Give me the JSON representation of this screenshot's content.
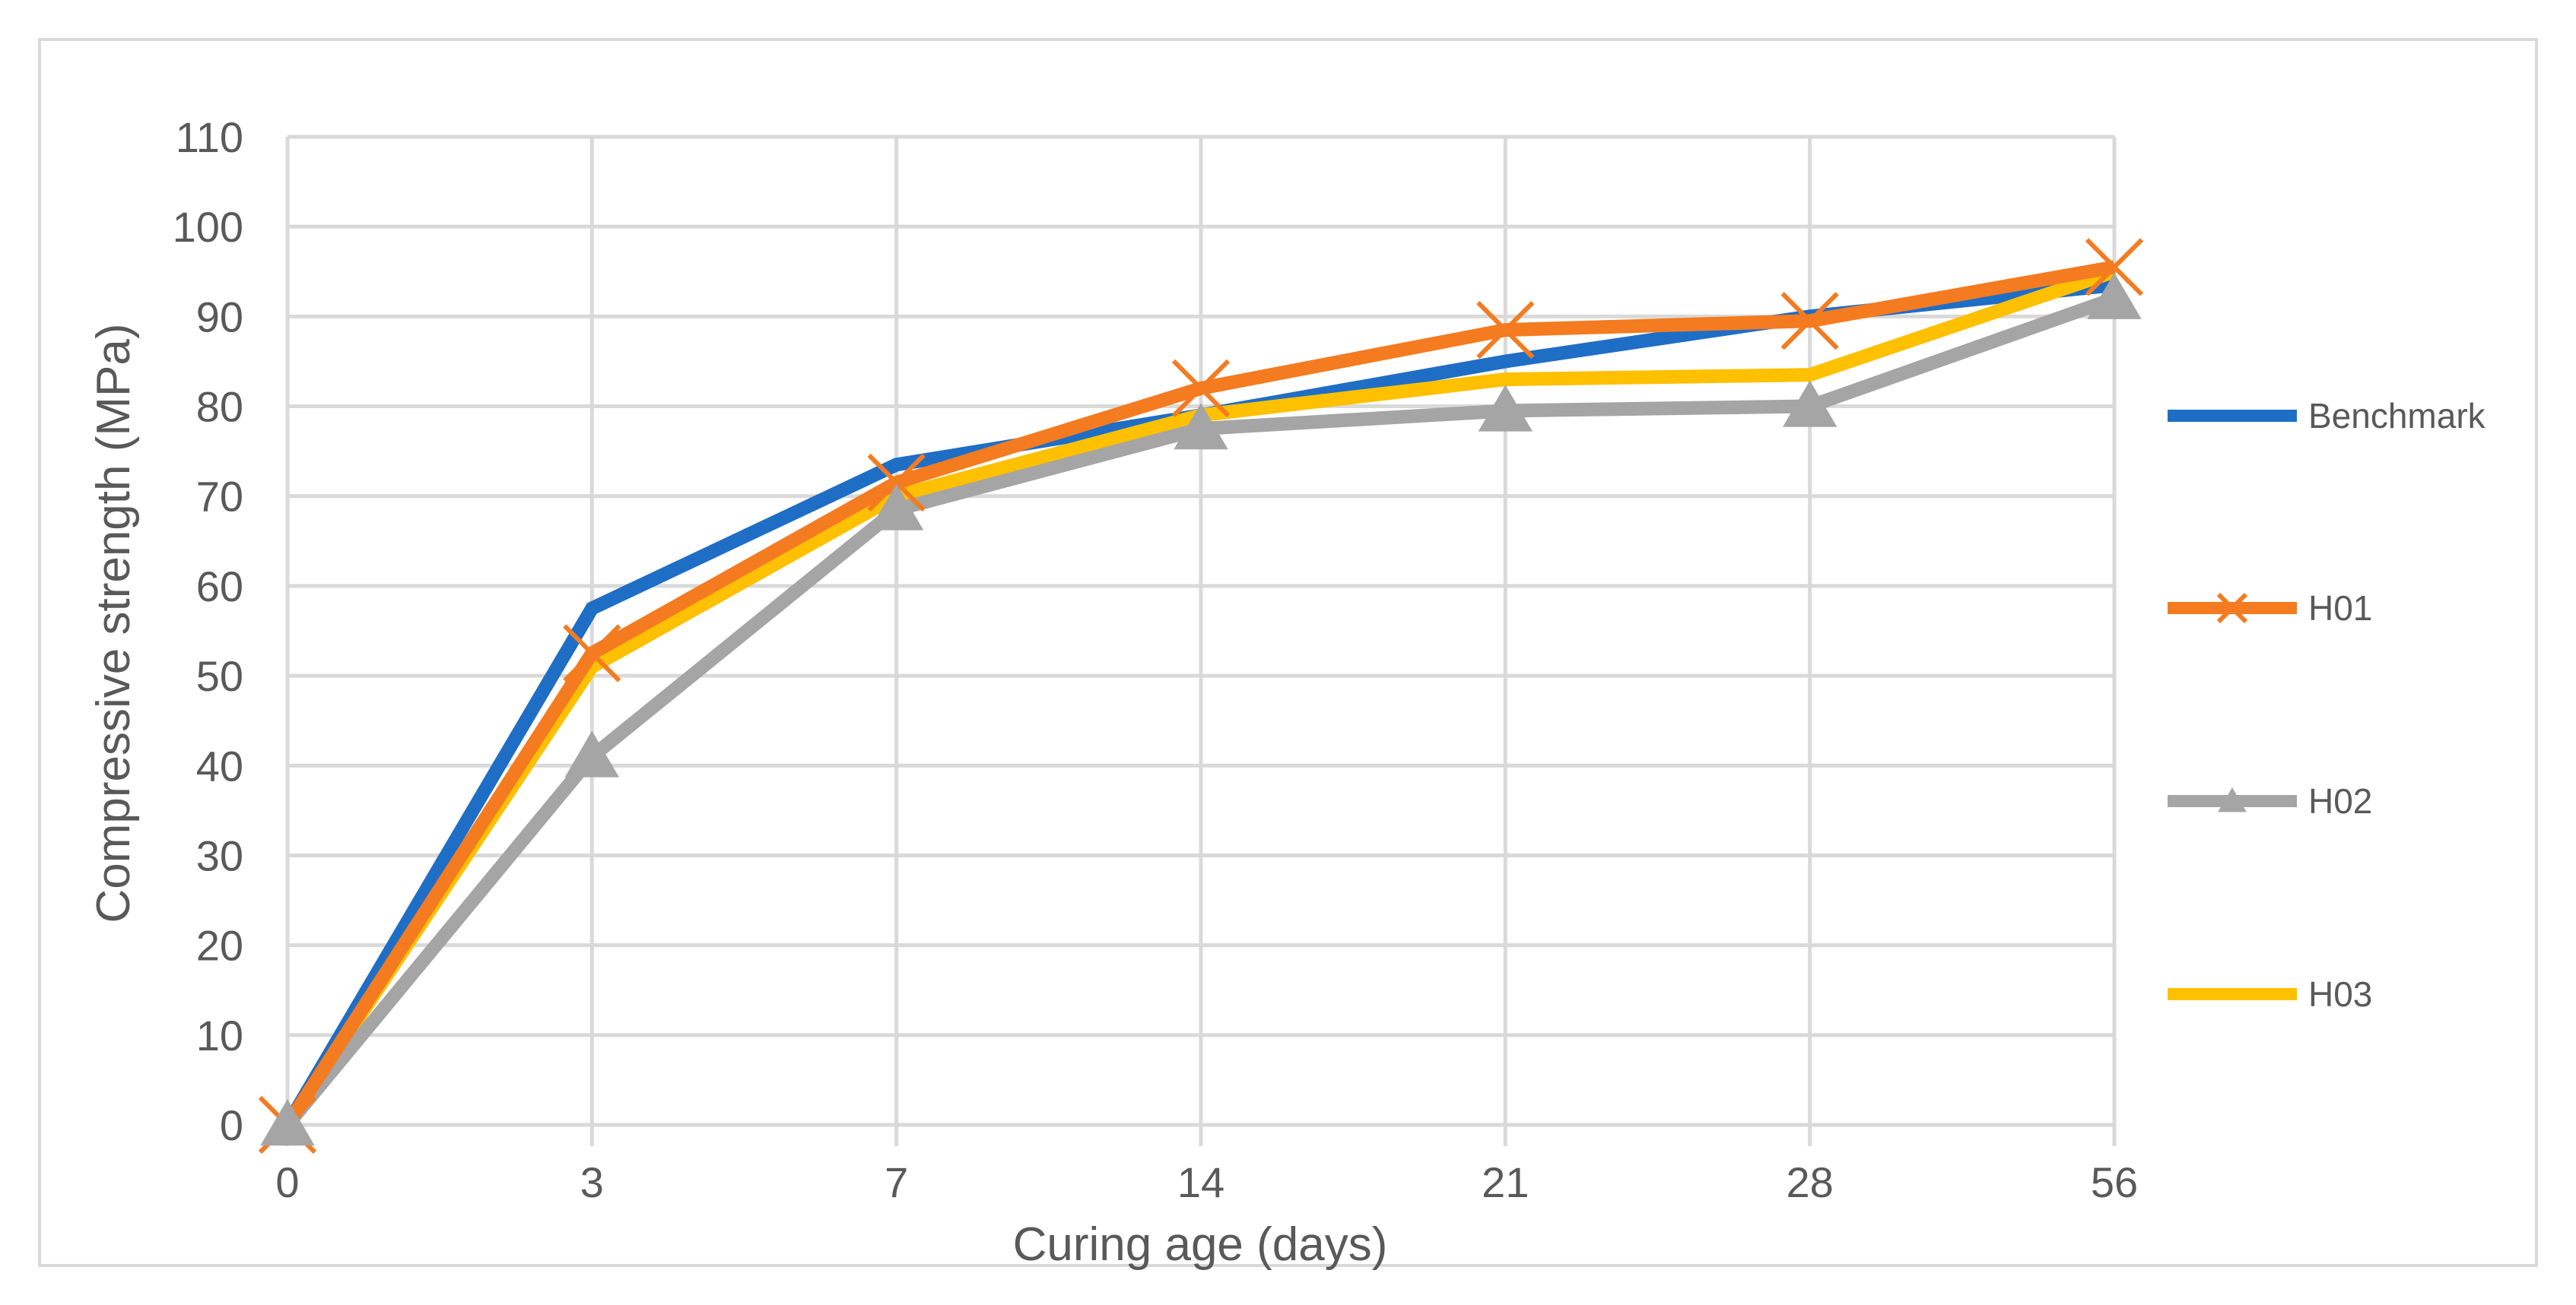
{
  "chart_data": {
    "type": "line",
    "title": "",
    "xlabel": "Curing age (days)",
    "ylabel": "Compressive strength (MPa)",
    "categories": [
      "0",
      "3",
      "7",
      "14",
      "21",
      "28",
      "56"
    ],
    "ylim": [
      0,
      110
    ],
    "yticks": [
      "0",
      "10",
      "20",
      "30",
      "40",
      "50",
      "60",
      "70",
      "80",
      "90",
      "100",
      "110"
    ],
    "grid": true,
    "legend_position": "right",
    "series": [
      {
        "name": "Benchmark",
        "color": "#1f6ec6",
        "marker": "none",
        "values": [
          0,
          57.5,
          73.5,
          79,
          85,
          90,
          93.5
        ]
      },
      {
        "name": "H01",
        "color": "#f47b20",
        "marker": "x-cross",
        "values": [
          0,
          52.5,
          71.5,
          82,
          88.5,
          89.5,
          95.5
        ]
      },
      {
        "name": "H02",
        "color": "#a5a5a5",
        "marker": "triangle",
        "values": [
          0,
          41,
          68.5,
          77.5,
          79.5,
          80,
          92
        ]
      },
      {
        "name": "H03",
        "color": "#ffc000",
        "marker": "none",
        "values": [
          0,
          51,
          70,
          79,
          83,
          83.5,
          95
        ]
      }
    ]
  }
}
